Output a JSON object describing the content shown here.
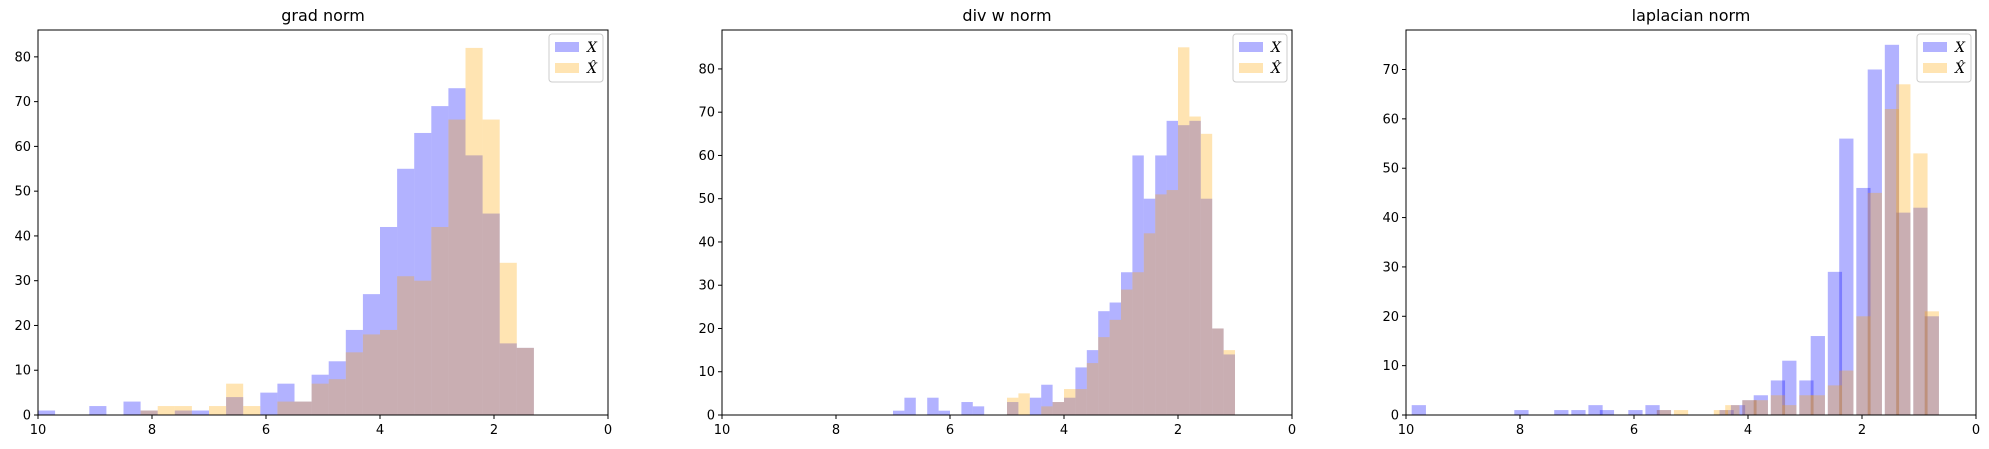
{
  "chart_data": [
    {
      "type": "histogram",
      "title": "grad norm",
      "xlim": [
        10,
        0
      ],
      "ylim": [
        0,
        86
      ],
      "xticks": [
        10,
        8,
        6,
        4,
        2,
        0
      ],
      "yticks": [
        0,
        10,
        20,
        30,
        40,
        50,
        60,
        70,
        80
      ],
      "legend_position": "upper right",
      "bin_width": 0.3,
      "series": [
        {
          "name": "X",
          "color": "#0000ff",
          "alpha": 0.3,
          "bins": [
            [
              10.0,
              1
            ],
            [
              9.1,
              2
            ],
            [
              8.5,
              3
            ],
            [
              8.2,
              1
            ],
            [
              7.6,
              1
            ],
            [
              7.3,
              1
            ],
            [
              6.7,
              4
            ],
            [
              6.1,
              5
            ],
            [
              5.8,
              7
            ],
            [
              5.5,
              3
            ],
            [
              5.2,
              9
            ],
            [
              4.9,
              12
            ],
            [
              4.6,
              19
            ],
            [
              4.3,
              27
            ],
            [
              4.0,
              42
            ],
            [
              3.7,
              55
            ],
            [
              3.4,
              63
            ],
            [
              3.1,
              69
            ],
            [
              2.8,
              73
            ],
            [
              2.5,
              58
            ],
            [
              2.2,
              45
            ],
            [
              1.9,
              16
            ],
            [
              1.6,
              15
            ]
          ]
        },
        {
          "name": "X̂",
          "color": "#ffa500",
          "alpha": 0.3,
          "bins": [
            [
              8.2,
              1
            ],
            [
              7.9,
              2
            ],
            [
              7.6,
              2
            ],
            [
              7.0,
              2
            ],
            [
              6.7,
              7
            ],
            [
              6.4,
              2
            ],
            [
              5.8,
              3
            ],
            [
              5.5,
              3
            ],
            [
              5.2,
              7
            ],
            [
              4.9,
              8
            ],
            [
              4.6,
              14
            ],
            [
              4.3,
              18
            ],
            [
              4.0,
              19
            ],
            [
              3.7,
              31
            ],
            [
              3.4,
              30
            ],
            [
              3.1,
              42
            ],
            [
              2.8,
              66
            ],
            [
              2.5,
              82
            ],
            [
              2.2,
              66
            ],
            [
              1.9,
              34
            ],
            [
              1.6,
              15
            ]
          ]
        }
      ]
    },
    {
      "type": "histogram",
      "title": "div w norm",
      "xlim": [
        10,
        0
      ],
      "ylim": [
        0,
        89
      ],
      "xticks": [
        10,
        8,
        6,
        4,
        2,
        0
      ],
      "yticks": [
        0,
        10,
        20,
        30,
        40,
        50,
        60,
        70,
        80
      ],
      "legend_position": "upper right",
      "bin_width": 0.2,
      "series": [
        {
          "name": "X",
          "color": "#0000ff",
          "alpha": 0.3,
          "bins": [
            [
              7.0,
              1
            ],
            [
              6.8,
              4
            ],
            [
              6.4,
              4
            ],
            [
              6.2,
              1
            ],
            [
              5.8,
              3
            ],
            [
              5.6,
              2
            ],
            [
              5.0,
              3
            ],
            [
              4.6,
              4
            ],
            [
              4.4,
              7
            ],
            [
              4.2,
              3
            ],
            [
              4.0,
              4
            ],
            [
              3.8,
              11
            ],
            [
              3.6,
              15
            ],
            [
              3.4,
              24
            ],
            [
              3.2,
              26
            ],
            [
              3.0,
              33
            ],
            [
              2.8,
              60
            ],
            [
              2.6,
              50
            ],
            [
              2.4,
              60
            ],
            [
              2.2,
              68
            ],
            [
              2.0,
              67
            ],
            [
              1.8,
              68
            ],
            [
              1.6,
              50
            ],
            [
              1.4,
              20
            ],
            [
              1.2,
              14
            ]
          ]
        },
        {
          "name": "X̂",
          "color": "#ffa500",
          "alpha": 0.3,
          "bins": [
            [
              5.0,
              4
            ],
            [
              4.8,
              5
            ],
            [
              4.4,
              2
            ],
            [
              4.2,
              3
            ],
            [
              4.0,
              6
            ],
            [
              3.8,
              6
            ],
            [
              3.6,
              12
            ],
            [
              3.4,
              18
            ],
            [
              3.2,
              22
            ],
            [
              3.0,
              29
            ],
            [
              2.8,
              33
            ],
            [
              2.6,
              42
            ],
            [
              2.4,
              51
            ],
            [
              2.2,
              52
            ],
            [
              2.0,
              85
            ],
            [
              1.8,
              69
            ],
            [
              1.6,
              65
            ],
            [
              1.4,
              20
            ],
            [
              1.2,
              15
            ]
          ]
        }
      ]
    },
    {
      "type": "histogram",
      "title": "laplacian norm",
      "xlim": [
        10,
        0
      ],
      "ylim": [
        0,
        78
      ],
      "xticks": [
        10,
        8,
        6,
        4,
        2,
        0
      ],
      "yticks": [
        0,
        10,
        20,
        30,
        40,
        50,
        60,
        70
      ],
      "legend_position": "upper right",
      "bin_width": 0.25,
      "series": [
        {
          "name": "X",
          "color": "#0000ff",
          "alpha": 0.3,
          "bins": [
            [
              9.9,
              2
            ],
            [
              8.1,
              1
            ],
            [
              7.4,
              1
            ],
            [
              7.1,
              1
            ],
            [
              6.8,
              2
            ],
            [
              6.6,
              1
            ],
            [
              6.1,
              1
            ],
            [
              5.8,
              2
            ],
            [
              5.6,
              1
            ],
            [
              4.5,
              1
            ],
            [
              4.3,
              2
            ],
            [
              4.1,
              3
            ],
            [
              3.9,
              4
            ],
            [
              3.6,
              7
            ],
            [
              3.4,
              11
            ],
            [
              3.1,
              7
            ],
            [
              2.9,
              16
            ],
            [
              2.6,
              29
            ],
            [
              2.4,
              56
            ],
            [
              2.1,
              46
            ],
            [
              1.9,
              70
            ],
            [
              1.6,
              75
            ],
            [
              1.4,
              41
            ],
            [
              1.1,
              42
            ],
            [
              0.9,
              20
            ]
          ]
        },
        {
          "name": "X̂",
          "color": "#ffa500",
          "alpha": 0.3,
          "bins": [
            [
              5.6,
              1
            ],
            [
              5.3,
              1
            ],
            [
              4.6,
              1
            ],
            [
              4.4,
              2
            ],
            [
              4.1,
              3
            ],
            [
              3.9,
              3
            ],
            [
              3.6,
              4
            ],
            [
              3.4,
              2
            ],
            [
              3.1,
              4
            ],
            [
              2.9,
              4
            ],
            [
              2.6,
              6
            ],
            [
              2.4,
              9
            ],
            [
              2.1,
              20
            ],
            [
              1.9,
              45
            ],
            [
              1.6,
              62
            ],
            [
              1.4,
              67
            ],
            [
              1.1,
              53
            ],
            [
              0.9,
              21
            ]
          ]
        }
      ]
    }
  ]
}
